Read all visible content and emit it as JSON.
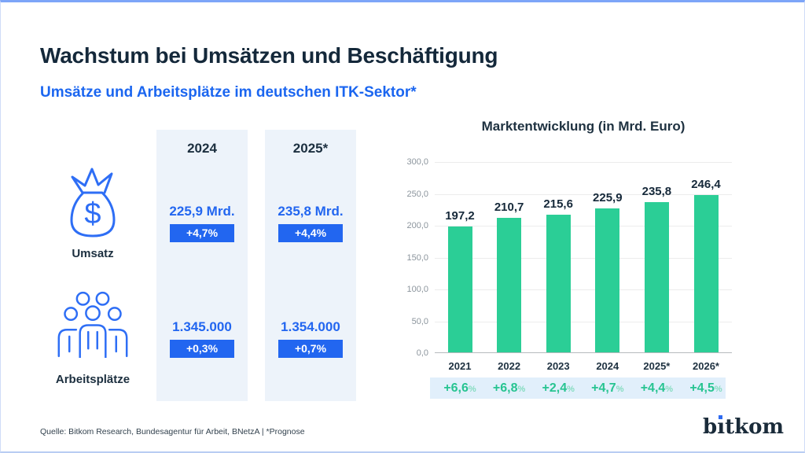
{
  "header": {
    "title": "Wachstum bei Umsätzen und Beschäftigung",
    "subtitle": "Umsätze und Arbeitsplätze im deutschen ITK-Sektor*"
  },
  "metrics": {
    "rows": [
      {
        "label": "Umsatz",
        "icon": "money-bag-icon"
      },
      {
        "label": "Arbeitsplätze",
        "icon": "people-icon"
      }
    ],
    "columns": [
      {
        "header": "2024",
        "umsatz": {
          "value": "225,9 Mrd.",
          "change": "+4,7%"
        },
        "arbeitsplaetze": {
          "value": "1.345.000",
          "change": "+0,3%"
        }
      },
      {
        "header": "2025*",
        "umsatz": {
          "value": "235,8 Mrd.",
          "change": "+4,4%"
        },
        "arbeitsplaetze": {
          "value": "1.354.000",
          "change": "+0,7%"
        }
      }
    ]
  },
  "chart_data": {
    "type": "bar",
    "title": "Marktentwicklung (in Mrd. Euro)",
    "categories": [
      "2021",
      "2022",
      "2023",
      "2024",
      "2025*",
      "2026*"
    ],
    "values": [
      197.2,
      210.7,
      215.6,
      225.9,
      235.8,
      246.4
    ],
    "value_labels": [
      "197,2",
      "210,7",
      "215,6",
      "225,9",
      "235,8",
      "246,4"
    ],
    "growth_labels": [
      "+6,6",
      "+6,8",
      "+2,4",
      "+4,7",
      "+4,4",
      "+4,5"
    ],
    "growth_suffix": "%",
    "xlabel": "",
    "ylabel": "",
    "ylim": [
      0,
      300
    ],
    "yticks": [
      "300,0",
      "250,0",
      "200,0",
      "150,0",
      "100,0",
      "50,0",
      "0,0"
    ],
    "grid": true,
    "legend": "none",
    "bar_color": "#2bce96"
  },
  "colors": {
    "accent_blue": "#2266f0",
    "dark_navy": "#14283a",
    "bar_green": "#2bce96",
    "growth_green": "#27c491",
    "column_bg": "#edf3fa",
    "band_bg": "#e1effb",
    "top_border": "#7da5f8"
  },
  "footer": {
    "source": "Quelle: Bitkom Research, Bundesagentur für Arbeit, BNetzA | *Prognose",
    "logo": "bitkom"
  }
}
